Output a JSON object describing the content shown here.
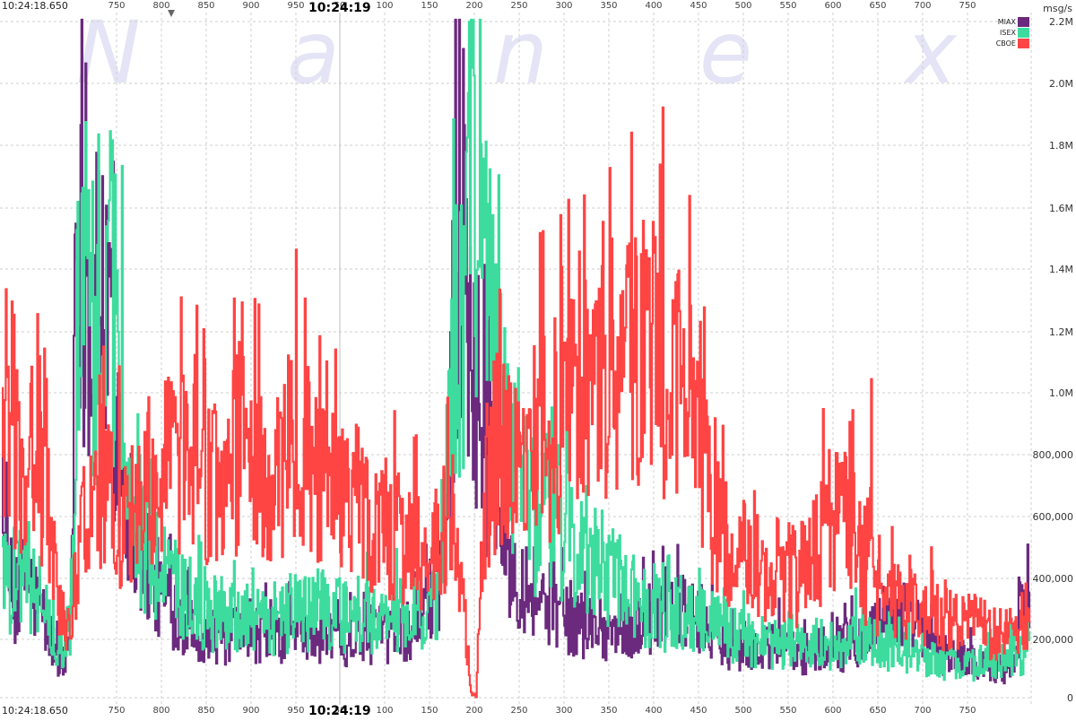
{
  "chart_data": {
    "type": "line",
    "watermark": [
      "N",
      "a",
      "n",
      "e",
      "x"
    ],
    "time_labels": {
      "start": "10:24:18.650",
      "center": "10:24:19"
    },
    "x_ticks": [
      "750",
      "800",
      "850",
      "900",
      "950",
      "50",
      "100",
      "150",
      "200",
      "250",
      "300",
      "350",
      "400",
      "450",
      "500",
      "550",
      "600",
      "650",
      "700",
      "750"
    ],
    "y_unit": "msg/s",
    "y_ticks": [
      "0",
      "200,000",
      "400,000",
      "600,000",
      "800,000",
      "1.0M",
      "1.2M",
      "1.4M",
      "1.6M",
      "1.8M",
      "2.0M",
      "2.2M"
    ],
    "ylim": [
      0,
      2200000
    ],
    "grid": true,
    "legend_position": "top-right",
    "x_range_ms": [
      720,
      1765
    ],
    "series": [
      {
        "name": "MIAX",
        "color": "#6b2a7e",
        "anchors": [
          [
            720,
            500000
          ],
          [
            728,
            380000
          ],
          [
            736,
            250000
          ],
          [
            744,
            450000
          ],
          [
            752,
            330000
          ],
          [
            760,
            300000
          ],
          [
            768,
            210000
          ],
          [
            776,
            150000
          ],
          [
            784,
            110000
          ],
          [
            790,
            300000
          ],
          [
            795,
            1600000
          ],
          [
            800,
            1750000
          ],
          [
            805,
            1300000
          ],
          [
            810,
            1150000
          ],
          [
            815,
            1200000
          ],
          [
            822,
            1400000
          ],
          [
            830,
            1100000
          ],
          [
            840,
            800000
          ],
          [
            850,
            600000
          ],
          [
            860,
            500000
          ],
          [
            880,
            350000
          ],
          [
            900,
            280000
          ],
          [
            920,
            230000
          ],
          [
            940,
            200000
          ],
          [
            960,
            210000
          ],
          [
            980,
            220000
          ],
          [
            1000,
            200000
          ],
          [
            1020,
            230000
          ],
          [
            1040,
            220000
          ],
          [
            1060,
            210000
          ],
          [
            1080,
            200000
          ],
          [
            1100,
            220000
          ],
          [
            1120,
            210000
          ],
          [
            1140,
            250000
          ],
          [
            1160,
            350000
          ],
          [
            1170,
            500000
          ],
          [
            1178,
            1000000
          ],
          [
            1184,
            1650000
          ],
          [
            1190,
            1500000
          ],
          [
            1195,
            1300000
          ],
          [
            1200,
            1100000
          ],
          [
            1206,
            900000
          ],
          [
            1215,
            800000
          ],
          [
            1225,
            650000
          ],
          [
            1235,
            450000
          ],
          [
            1250,
            400000
          ],
          [
            1270,
            330000
          ],
          [
            1290,
            280000
          ],
          [
            1310,
            250000
          ],
          [
            1330,
            240000
          ],
          [
            1350,
            220000
          ],
          [
            1370,
            250000
          ],
          [
            1390,
            300000
          ],
          [
            1410,
            300000
          ],
          [
            1430,
            250000
          ],
          [
            1450,
            200000
          ],
          [
            1470,
            170000
          ],
          [
            1490,
            160000
          ],
          [
            1510,
            180000
          ],
          [
            1530,
            150000
          ],
          [
            1550,
            170000
          ],
          [
            1570,
            160000
          ],
          [
            1590,
            200000
          ],
          [
            1610,
            250000
          ],
          [
            1630,
            300000
          ],
          [
            1650,
            250000
          ],
          [
            1670,
            150000
          ],
          [
            1690,
            150000
          ],
          [
            1710,
            130000
          ],
          [
            1730,
            110000
          ],
          [
            1745,
            100000
          ],
          [
            1755,
            250000
          ],
          [
            1765,
            350000
          ]
        ],
        "peaks": [
          [
            800,
            1860000
          ],
          [
            1190,
            1860000
          ],
          [
            826,
            1600000
          ],
          [
            1178,
            1550000
          ]
        ]
      },
      {
        "name": "ISEX",
        "color": "#3ddc9e",
        "anchors": [
          [
            720,
            550000
          ],
          [
            728,
            380000
          ],
          [
            736,
            400000
          ],
          [
            744,
            430000
          ],
          [
            752,
            380000
          ],
          [
            760,
            320000
          ],
          [
            768,
            230000
          ],
          [
            776,
            200000
          ],
          [
            784,
            180000
          ],
          [
            790,
            280000
          ],
          [
            795,
            1200000
          ],
          [
            800,
            1300000
          ],
          [
            805,
            1200000
          ],
          [
            810,
            1150000
          ],
          [
            820,
            1200000
          ],
          [
            830,
            1300000
          ],
          [
            835,
            1350000
          ],
          [
            840,
            1100000
          ],
          [
            846,
            800000
          ],
          [
            855,
            600000
          ],
          [
            865,
            500000
          ],
          [
            880,
            400000
          ],
          [
            900,
            350000
          ],
          [
            920,
            300000
          ],
          [
            940,
            280000
          ],
          [
            960,
            270000
          ],
          [
            980,
            250000
          ],
          [
            1000,
            260000
          ],
          [
            1020,
            280000
          ],
          [
            1040,
            300000
          ],
          [
            1060,
            290000
          ],
          [
            1080,
            270000
          ],
          [
            1100,
            260000
          ],
          [
            1120,
            280000
          ],
          [
            1140,
            300000
          ],
          [
            1160,
            300000
          ],
          [
            1170,
            600000
          ],
          [
            1178,
            1000000
          ],
          [
            1185,
            1200000
          ],
          [
            1190,
            1300000
          ],
          [
            1197,
            1600000
          ],
          [
            1203,
            1700000
          ],
          [
            1210,
            1400000
          ],
          [
            1220,
            1200000
          ],
          [
            1230,
            900000
          ],
          [
            1245,
            700000
          ],
          [
            1260,
            600000
          ],
          [
            1280,
            600000
          ],
          [
            1300,
            550000
          ],
          [
            1320,
            480000
          ],
          [
            1340,
            380000
          ],
          [
            1360,
            330000
          ],
          [
            1380,
            300000
          ],
          [
            1400,
            280000
          ],
          [
            1420,
            280000
          ],
          [
            1440,
            250000
          ],
          [
            1460,
            230000
          ],
          [
            1480,
            200000
          ],
          [
            1500,
            190000
          ],
          [
            1520,
            180000
          ],
          [
            1540,
            170000
          ],
          [
            1560,
            180000
          ],
          [
            1580,
            200000
          ],
          [
            1600,
            210000
          ],
          [
            1620,
            180000
          ],
          [
            1640,
            160000
          ],
          [
            1660,
            140000
          ],
          [
            1680,
            120000
          ],
          [
            1700,
            110000
          ],
          [
            1720,
            130000
          ],
          [
            1740,
            140000
          ],
          [
            1755,
            150000
          ],
          [
            1765,
            160000
          ]
        ],
        "peaks": [
          [
            818,
            1830000
          ],
          [
            1200,
            2020000
          ],
          [
            1193,
            1820000
          ],
          [
            808,
            1650000
          ]
        ]
      },
      {
        "name": "CBOE",
        "color": "#ff4444",
        "anchors": [
          [
            720,
            820000
          ],
          [
            730,
            780000
          ],
          [
            740,
            720000
          ],
          [
            750,
            780000
          ],
          [
            760,
            700000
          ],
          [
            770,
            520000
          ],
          [
            778,
            300000
          ],
          [
            786,
            250000
          ],
          [
            792,
            300000
          ],
          [
            798,
            500000
          ],
          [
            805,
            600000
          ],
          [
            812,
            580000
          ],
          [
            820,
            650000
          ],
          [
            830,
            680000
          ],
          [
            840,
            600000
          ],
          [
            850,
            620000
          ],
          [
            860,
            650000
          ],
          [
            870,
            700000
          ],
          [
            880,
            750000
          ],
          [
            890,
            800000
          ],
          [
            900,
            780000
          ],
          [
            910,
            750000
          ],
          [
            920,
            720000
          ],
          [
            930,
            700000
          ],
          [
            940,
            720000
          ],
          [
            950,
            750000
          ],
          [
            960,
            800000
          ],
          [
            970,
            760000
          ],
          [
            980,
            720000
          ],
          [
            990,
            700000
          ],
          [
            1000,
            720000
          ],
          [
            1010,
            800000
          ],
          [
            1020,
            820000
          ],
          [
            1030,
            780000
          ],
          [
            1040,
            760000
          ],
          [
            1050,
            700000
          ],
          [
            1060,
            680000
          ],
          [
            1070,
            640000
          ],
          [
            1080,
            650000
          ],
          [
            1090,
            600000
          ],
          [
            1100,
            580000
          ],
          [
            1110,
            560000
          ],
          [
            1120,
            520000
          ],
          [
            1130,
            480000
          ],
          [
            1140,
            500000
          ],
          [
            1150,
            480000
          ],
          [
            1160,
            500000
          ],
          [
            1170,
            500000
          ],
          [
            1176,
            600000
          ],
          [
            1180,
            500000
          ],
          [
            1186,
            400000
          ],
          [
            1192,
            200000
          ],
          [
            1197,
            30000
          ],
          [
            1202,
            10000
          ],
          [
            1207,
            300000
          ],
          [
            1212,
            700000
          ],
          [
            1220,
            800000
          ],
          [
            1230,
            780000
          ],
          [
            1240,
            750000
          ],
          [
            1250,
            800000
          ],
          [
            1260,
            820000
          ],
          [
            1270,
            850000
          ],
          [
            1280,
            880000
          ],
          [
            1290,
            900000
          ],
          [
            1300,
            920000
          ],
          [
            1310,
            950000
          ],
          [
            1320,
            980000
          ],
          [
            1330,
            1000000
          ],
          [
            1340,
            1030000
          ],
          [
            1350,
            1050000
          ],
          [
            1360,
            1080000
          ],
          [
            1370,
            1100000
          ],
          [
            1380,
            1100000
          ],
          [
            1390,
            1080000
          ],
          [
            1400,
            1050000
          ],
          [
            1410,
            1000000
          ],
          [
            1420,
            950000
          ],
          [
            1430,
            800000
          ],
          [
            1440,
            600000
          ],
          [
            1450,
            550000
          ],
          [
            1460,
            500000
          ],
          [
            1470,
            480000
          ],
          [
            1480,
            460000
          ],
          [
            1490,
            450000
          ],
          [
            1500,
            430000
          ],
          [
            1510,
            420000
          ],
          [
            1520,
            420000
          ],
          [
            1530,
            400000
          ],
          [
            1540,
            420000
          ],
          [
            1550,
            500000
          ],
          [
            1560,
            550000
          ],
          [
            1570,
            600000
          ],
          [
            1580,
            550000
          ],
          [
            1590,
            500000
          ],
          [
            1600,
            400000
          ],
          [
            1610,
            350000
          ],
          [
            1620,
            340000
          ],
          [
            1630,
            330000
          ],
          [
            1640,
            300000
          ],
          [
            1650,
            300000
          ],
          [
            1660,
            280000
          ],
          [
            1670,
            280000
          ],
          [
            1680,
            260000
          ],
          [
            1690,
            250000
          ],
          [
            1700,
            250000
          ],
          [
            1710,
            250000
          ],
          [
            1720,
            230000
          ],
          [
            1730,
            230000
          ],
          [
            1740,
            220000
          ],
          [
            1750,
            220000
          ],
          [
            1765,
            230000
          ]
        ],
        "peaks": [
          [
            756,
            1250000
          ],
          [
            956,
            1300000
          ],
          [
            1028,
            1300000
          ],
          [
            1357,
            1370000
          ],
          [
            1408,
            1390000
          ],
          [
            1604,
            1040000
          ],
          [
            1585,
            940000
          ]
        ]
      }
    ]
  }
}
